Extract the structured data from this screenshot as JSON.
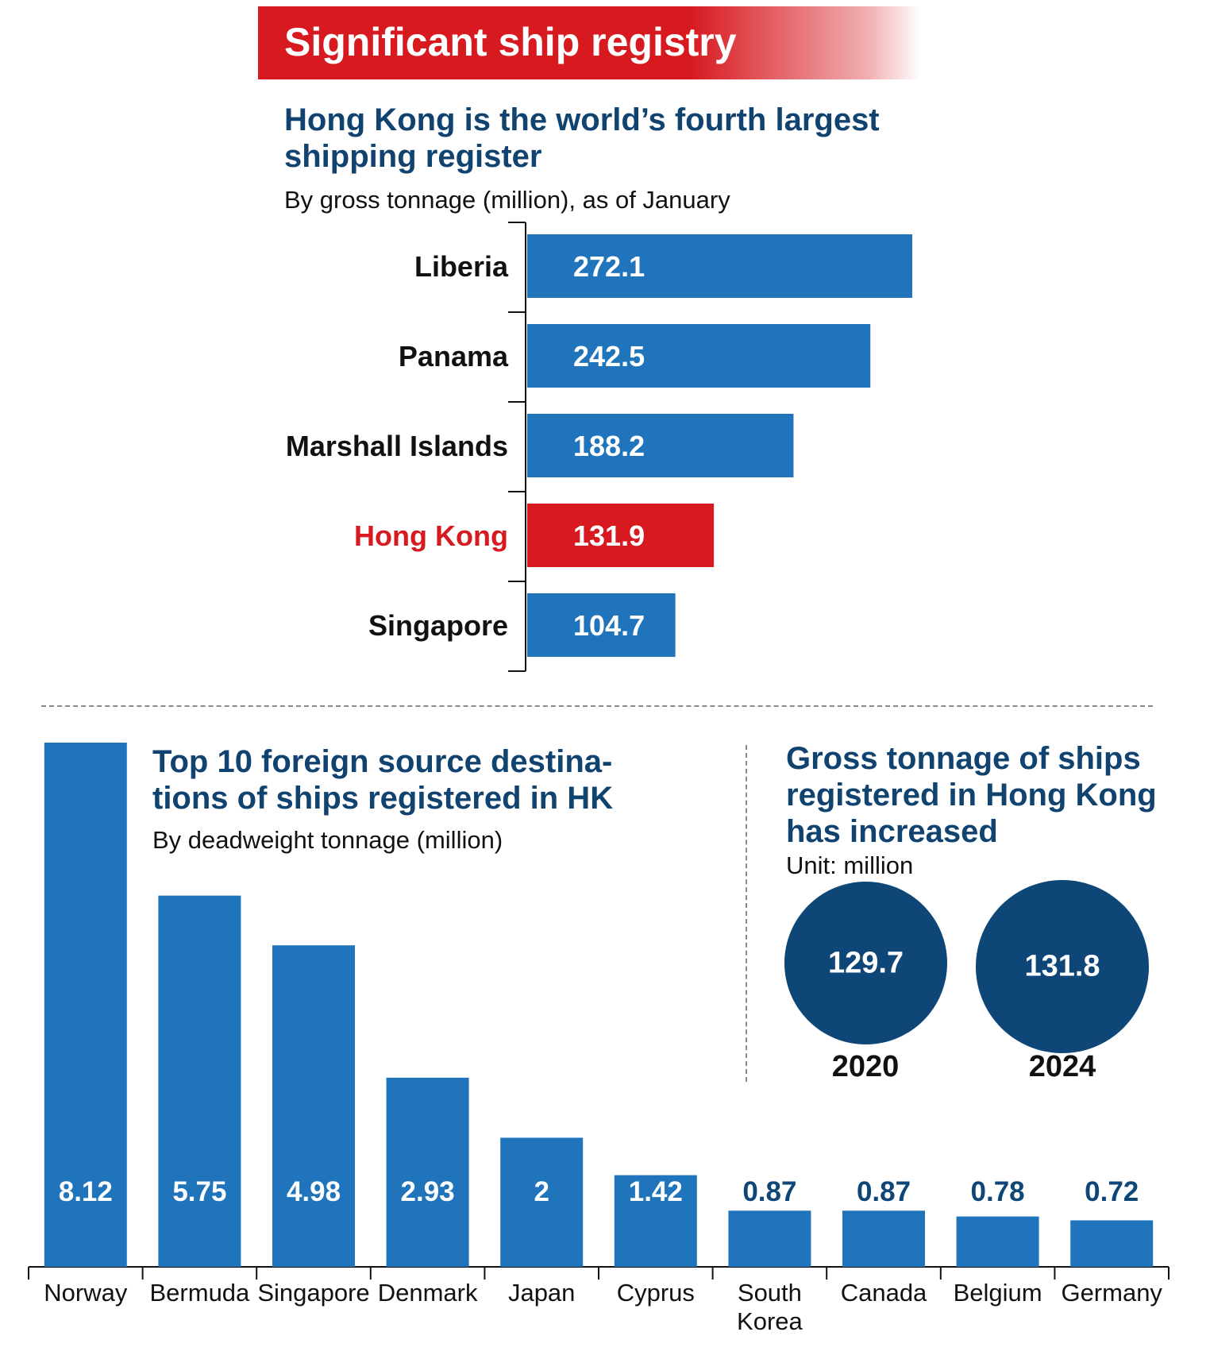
{
  "banner": {
    "title": "Significant ship registry"
  },
  "colors": {
    "bar": "#1f74bc",
    "highlight": "#d71920",
    "dark": "#0d4677",
    "title": "#10436f"
  },
  "chart_data": [
    {
      "type": "bar",
      "orientation": "horizontal",
      "title": "Hong Kong is the world’s fourth largest shipping register",
      "subtitle": "By gross tonnage (million), as of January",
      "categories": [
        "Liberia",
        "Panama",
        "Marshall Islands",
        "Hong Kong",
        "Singapore"
      ],
      "values": [
        272.1,
        242.5,
        188.2,
        131.9,
        104.7
      ],
      "value_labels": [
        "272.1",
        "242.5",
        "188.2",
        "131.9",
        "104.7"
      ],
      "highlight": "Hong Kong"
    },
    {
      "type": "bar",
      "title": "Top 10 foreign source destina-tions of ships registered in HK",
      "subtitle": "By deadweight tonnage (million)",
      "categories": [
        "Norway",
        "Bermuda",
        "Singapore",
        "Denmark",
        "Japan",
        "Cyprus",
        "South Korea",
        "Canada",
        "Belgium",
        "Germany"
      ],
      "values": [
        8.12,
        5.75,
        4.98,
        2.93,
        2,
        1.42,
        0.87,
        0.87,
        0.78,
        0.72
      ],
      "value_labels": [
        "8.12",
        "5.75",
        "4.98",
        "2.93",
        "2",
        "1.42",
        "0.87",
        "0.87",
        "0.78",
        "0.72"
      ]
    },
    {
      "type": "bubble",
      "title": "Gross tonnage of ships registered in Hong Kong has increased",
      "subtitle": "Unit: million",
      "categories": [
        "2020",
        "2024"
      ],
      "values": [
        129.7,
        131.8
      ],
      "value_labels": [
        "129.7",
        "131.8"
      ]
    }
  ]
}
